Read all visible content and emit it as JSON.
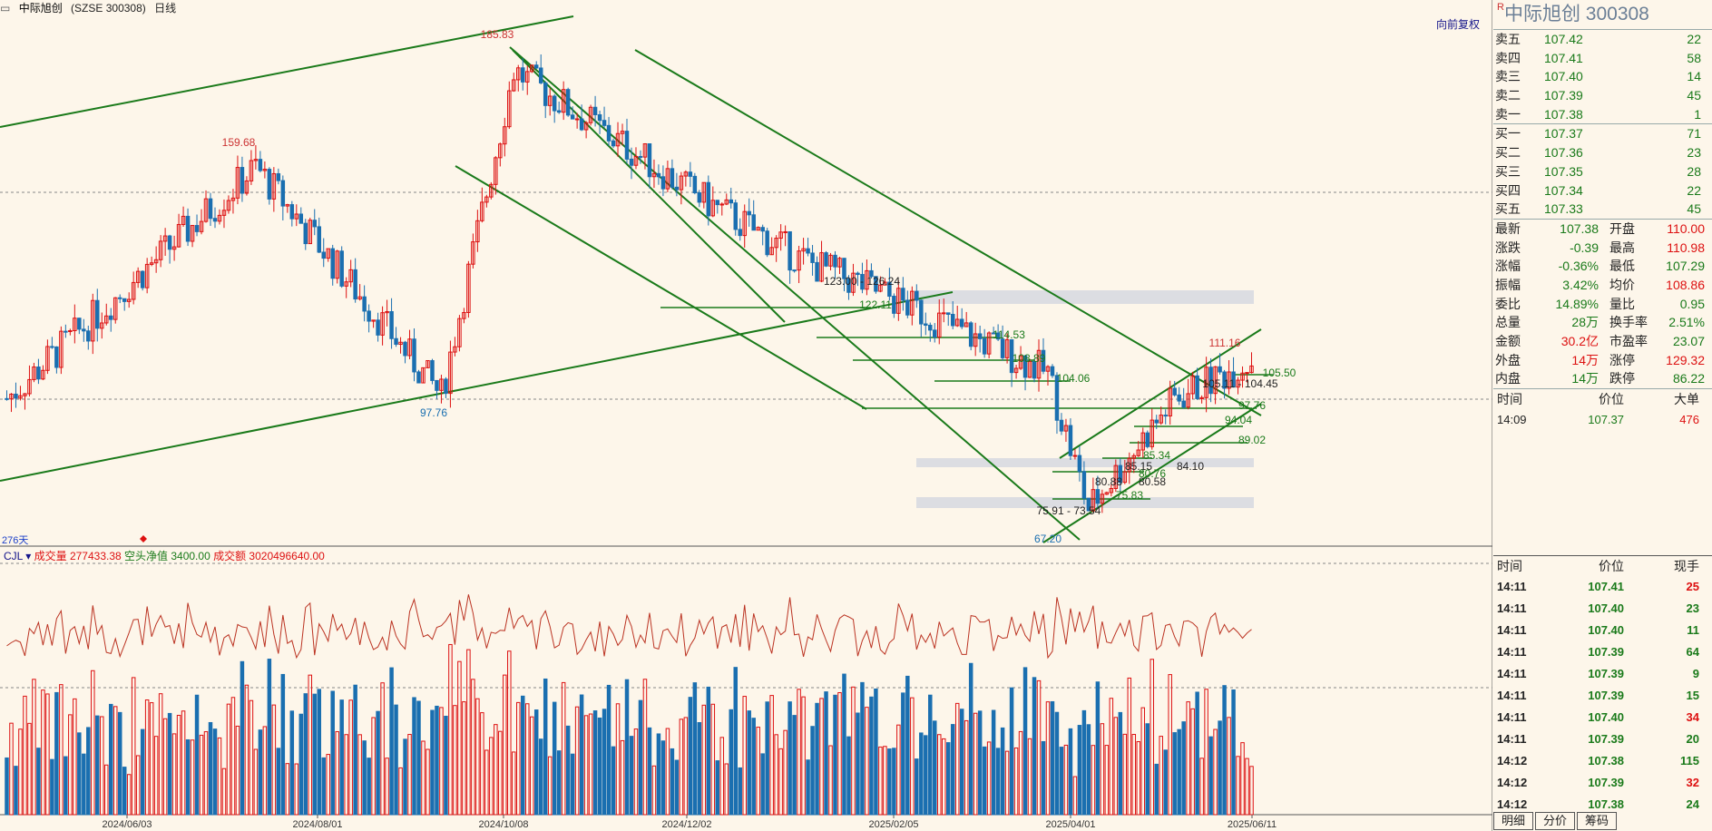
{
  "header": {
    "title": "中际旭创",
    "code": "(SZSE 300308)",
    "period": "日线",
    "adjust": "向前复权"
  },
  "indicator": {
    "name": "CJL",
    "vol_label": "成交量 277433.38",
    "net_label": "空头净值 3400.00",
    "amount_label": "成交额 3020496640.00"
  },
  "chart_labels": {
    "days": "276天",
    "x_ticks": [
      "2024/06/03",
      "2024/08/01",
      "2024/10/08",
      "2024/12/02",
      "2025/02/05",
      "2025/04/01",
      "2025/06/11"
    ],
    "price_marks": [
      "185.83",
      "159.68",
      "97.76",
      "123.00 - 126.24",
      "122.11",
      "114.53",
      "108.89",
      "104.06",
      "111.16",
      "105.50",
      "105.11 - 104.45",
      "97.76",
      "94.04",
      "89.02",
      "85.34",
      "85.15",
      "84.10",
      "80.88",
      "80.58",
      "80.76",
      "75.83",
      "75.91 - 73.54",
      "67.20"
    ]
  },
  "chart_data": {
    "type": "candlestick",
    "x_ticks": [
      "2024/06/03",
      "2024/08/01",
      "2024/10/08",
      "2024/12/02",
      "2025/02/05",
      "2025/04/01",
      "2025/06/11"
    ],
    "y_range": [
      60,
      200
    ],
    "key_points": [
      {
        "date": "2024/05",
        "price": 97
      },
      {
        "date": "2024/07",
        "price": 159.68
      },
      {
        "date": "2024/09",
        "price": 97.76
      },
      {
        "date": "2024/10/08",
        "price": 185.83
      },
      {
        "date": "2024/12",
        "price": 150
      },
      {
        "date": "2025/01",
        "price": 135
      },
      {
        "date": "2025/02",
        "price": 126.24
      },
      {
        "date": "2025/03",
        "price": 104
      },
      {
        "date": "2025/04/07",
        "price": 67.2
      },
      {
        "date": "2025/05",
        "price": 97
      },
      {
        "date": "2025/06/11",
        "price": 107.37
      }
    ],
    "colors": {
      "up": "#d11",
      "down": "#1a6fb0",
      "trend": "#1a7a1a"
    }
  },
  "panel": {
    "title": "中际旭创 300308",
    "asks": [
      {
        "k": "卖五",
        "p": "107.42",
        "v": "22"
      },
      {
        "k": "卖四",
        "p": "107.41",
        "v": "58"
      },
      {
        "k": "卖三",
        "p": "107.40",
        "v": "14"
      },
      {
        "k": "卖二",
        "p": "107.39",
        "v": "45"
      },
      {
        "k": "卖一",
        "p": "107.38",
        "v": "1"
      }
    ],
    "bids": [
      {
        "k": "买一",
        "p": "107.37",
        "v": "71"
      },
      {
        "k": "买二",
        "p": "107.36",
        "v": "23"
      },
      {
        "k": "买三",
        "p": "107.35",
        "v": "28"
      },
      {
        "k": "买四",
        "p": "107.34",
        "v": "22"
      },
      {
        "k": "买五",
        "p": "107.33",
        "v": "45"
      }
    ],
    "stats": [
      {
        "k1": "最新",
        "v1": "107.38",
        "c1": "grn",
        "k2": "开盘",
        "v2": "110.00",
        "c2": "red"
      },
      {
        "k1": "涨跌",
        "v1": "-0.39",
        "c1": "grn",
        "k2": "最高",
        "v2": "110.98",
        "c2": "red"
      },
      {
        "k1": "涨幅",
        "v1": "-0.36%",
        "c1": "grn",
        "k2": "最低",
        "v2": "107.29",
        "c2": "grn"
      },
      {
        "k1": "振幅",
        "v1": "3.42%",
        "c1": "grn",
        "k2": "均价",
        "v2": "108.86",
        "c2": "red"
      },
      {
        "k1": "委比",
        "v1": "14.89%",
        "c1": "grn",
        "k2": "量比",
        "v2": "0.95",
        "c2": "grn"
      },
      {
        "k1": "总量",
        "v1": "28万",
        "c1": "grn",
        "k2": "换手率",
        "v2": "2.51%",
        "c2": "grn"
      },
      {
        "k1": "金额",
        "v1": "30.2亿",
        "c1": "red",
        "k2": "市盈率",
        "v2": "23.07",
        "c2": "grn"
      },
      {
        "k1": "外盘",
        "v1": "14万",
        "c1": "red",
        "k2": "涨停",
        "v2": "129.32",
        "c2": "red"
      },
      {
        "k1": "内盘",
        "v1": "14万",
        "c1": "grn",
        "k2": "跌停",
        "v2": "86.22",
        "c2": "grn"
      }
    ],
    "big_header": {
      "a": "时间",
      "b": "价位",
      "c": "大单"
    },
    "big_row": {
      "t": "14:09",
      "p": "107.37",
      "v": "476"
    },
    "tick_header": {
      "a": "时间",
      "b": "价位",
      "c": "现手"
    },
    "ticks": [
      {
        "t": "14:11",
        "p": "107.41",
        "v": "25",
        "c": "red"
      },
      {
        "t": "14:11",
        "p": "107.40",
        "v": "23",
        "c": "grn"
      },
      {
        "t": "14:11",
        "p": "107.40",
        "v": "11",
        "c": "grn"
      },
      {
        "t": "14:11",
        "p": "107.39",
        "v": "64",
        "c": "grn"
      },
      {
        "t": "14:11",
        "p": "107.39",
        "v": "9",
        "c": "grn"
      },
      {
        "t": "14:11",
        "p": "107.39",
        "v": "15",
        "c": "grn"
      },
      {
        "t": "14:11",
        "p": "107.40",
        "v": "34",
        "c": "red"
      },
      {
        "t": "14:11",
        "p": "107.39",
        "v": "20",
        "c": "grn"
      },
      {
        "t": "14:12",
        "p": "107.38",
        "v": "115",
        "c": "grn"
      },
      {
        "t": "14:12",
        "p": "107.39",
        "v": "32",
        "c": "red"
      },
      {
        "t": "14:12",
        "p": "107.38",
        "v": "24",
        "c": "grn"
      }
    ],
    "tabs": [
      "明细",
      "分价",
      "筹码"
    ]
  }
}
